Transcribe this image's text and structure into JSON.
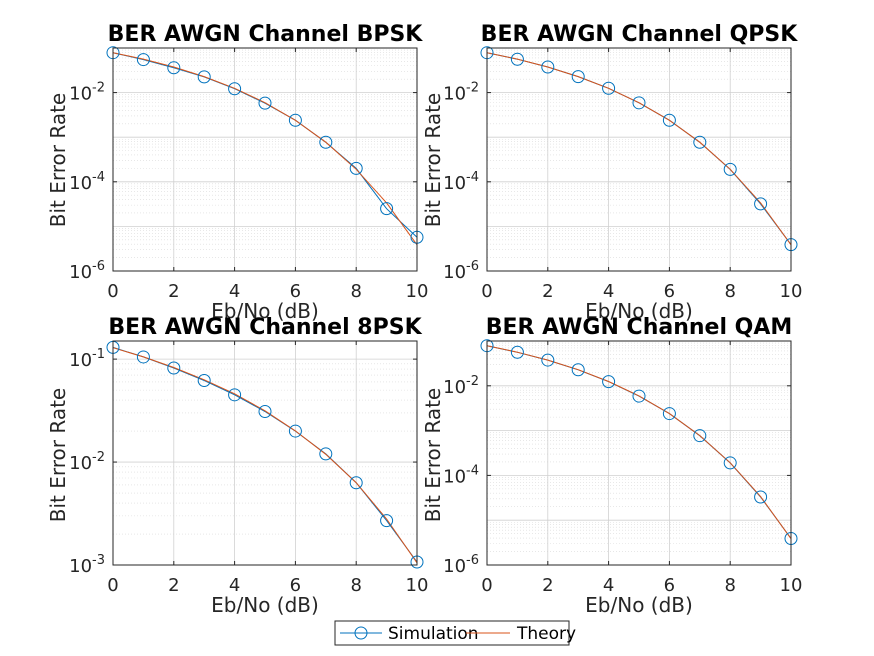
{
  "chart_data": [
    {
      "type": "line",
      "title": "BER AWGN Channel BPSK",
      "xlabel": "Eb/No (dB)",
      "ylabel": "Bit Error Rate",
      "yscale": "log",
      "xlim": [
        0,
        10
      ],
      "ylim": [
        1e-06,
        0.1
      ],
      "xticks": [
        "0",
        "2",
        "4",
        "6",
        "8",
        "10"
      ],
      "yticks": [
        {
          "base": "10",
          "exp": "-2",
          "value": 0.01
        },
        {
          "base": "10",
          "exp": "-4",
          "value": 0.0001
        },
        {
          "base": "10",
          "exp": "-6",
          "value": 1e-06
        }
      ],
      "grid": true,
      "minor_grid": true,
      "x": [
        0,
        1,
        2,
        3,
        4,
        5,
        6,
        7,
        8,
        9,
        10
      ],
      "series": [
        {
          "name": "Simulation",
          "marker": "circle",
          "color": "#0072BD",
          "values": [
            0.0785,
            0.055,
            0.036,
            0.0225,
            0.0122,
            0.0058,
            0.0024,
            0.00077,
            0.0002,
            2.5e-05,
            5.7e-06
          ]
        },
        {
          "name": "Theory",
          "marker": "none",
          "color": "#D95319",
          "values": [
            0.0786,
            0.0563,
            0.0375,
            0.0229,
            0.0125,
            0.00595,
            0.00239,
            0.000773,
            0.000191,
            3.36e-05,
            3.87e-06
          ]
        }
      ]
    },
    {
      "type": "line",
      "title": "BER AWGN Channel QPSK",
      "xlabel": "Eb/No (dB)",
      "ylabel": "Bit Error Rate",
      "yscale": "log",
      "xlim": [
        0,
        10
      ],
      "ylim": [
        1e-06,
        0.1
      ],
      "xticks": [
        "0",
        "2",
        "4",
        "6",
        "8",
        "10"
      ],
      "yticks": [
        {
          "base": "10",
          "exp": "-2",
          "value": 0.01
        },
        {
          "base": "10",
          "exp": "-4",
          "value": 0.0001
        },
        {
          "base": "10",
          "exp": "-6",
          "value": 1e-06
        }
      ],
      "grid": true,
      "minor_grid": true,
      "x": [
        0,
        1,
        2,
        3,
        4,
        5,
        6,
        7,
        8,
        9,
        10
      ],
      "series": [
        {
          "name": "Simulation",
          "marker": "circle",
          "color": "#0072BD",
          "values": [
            0.0785,
            0.056,
            0.0375,
            0.0228,
            0.0125,
            0.0059,
            0.0024,
            0.00077,
            0.00019,
            3.2e-05,
            3.9e-06
          ]
        },
        {
          "name": "Theory",
          "marker": "none",
          "color": "#D95319",
          "values": [
            0.0786,
            0.0563,
            0.0375,
            0.0229,
            0.0125,
            0.00595,
            0.00239,
            0.000773,
            0.000191,
            3.36e-05,
            3.87e-06
          ]
        }
      ]
    },
    {
      "type": "line",
      "title": "BER AWGN Channel 8PSK",
      "xlabel": "Eb/No (dB)",
      "ylabel": "Bit Error Rate",
      "yscale": "log",
      "xlim": [
        0,
        10
      ],
      "ylim": [
        0.001,
        0.15
      ],
      "xticks": [
        "0",
        "2",
        "4",
        "6",
        "8",
        "10"
      ],
      "yticks": [
        {
          "base": "10",
          "exp": "-1",
          "value": 0.1
        },
        {
          "base": "10",
          "exp": "-2",
          "value": 0.01
        },
        {
          "base": "10",
          "exp": "-3",
          "value": 0.001
        }
      ],
      "grid": true,
      "minor_grid": true,
      "x": [
        0,
        1,
        2,
        3,
        4,
        5,
        6,
        7,
        8,
        9,
        10
      ],
      "series": [
        {
          "name": "Simulation",
          "marker": "circle",
          "color": "#0072BD",
          "values": [
            0.13,
            0.105,
            0.082,
            0.062,
            0.045,
            0.031,
            0.02,
            0.012,
            0.0063,
            0.0027,
            0.00107
          ]
        },
        {
          "name": "Theory",
          "marker": "none",
          "color": "#D95319",
          "values": [
            0.129,
            0.105,
            0.083,
            0.063,
            0.046,
            0.0315,
            0.0201,
            0.0119,
            0.0063,
            0.0028,
            0.00105
          ]
        }
      ]
    },
    {
      "type": "line",
      "title": "BER AWGN Channel QAM",
      "xlabel": "Eb/No (dB)",
      "ylabel": "Bit Error Rate",
      "yscale": "log",
      "xlim": [
        0,
        10
      ],
      "ylim": [
        1e-06,
        0.1
      ],
      "xticks": [
        "0",
        "2",
        "4",
        "6",
        "8",
        "10"
      ],
      "yticks": [
        {
          "base": "10",
          "exp": "-2",
          "value": 0.01
        },
        {
          "base": "10",
          "exp": "-4",
          "value": 0.0001
        },
        {
          "base": "10",
          "exp": "-6",
          "value": 1e-06
        }
      ],
      "grid": true,
      "minor_grid": true,
      "x": [
        0,
        1,
        2,
        3,
        4,
        5,
        6,
        7,
        8,
        9,
        10
      ],
      "series": [
        {
          "name": "Simulation",
          "marker": "circle",
          "color": "#0072BD",
          "values": [
            0.0785,
            0.056,
            0.0375,
            0.0228,
            0.0124,
            0.0059,
            0.0024,
            0.00077,
            0.00019,
            3.3e-05,
            3.9e-06
          ]
        },
        {
          "name": "Theory",
          "marker": "none",
          "color": "#D95319",
          "values": [
            0.0786,
            0.0563,
            0.0375,
            0.0229,
            0.0125,
            0.00595,
            0.00239,
            0.000773,
            0.000191,
            3.36e-05,
            3.87e-06
          ]
        }
      ]
    }
  ],
  "legend": {
    "placement": "bottom-center",
    "entries": [
      {
        "label": "Simulation",
        "color": "#0072BD",
        "marker": "circle"
      },
      {
        "label": "Theory",
        "color": "#D95319",
        "marker": "none"
      }
    ]
  }
}
